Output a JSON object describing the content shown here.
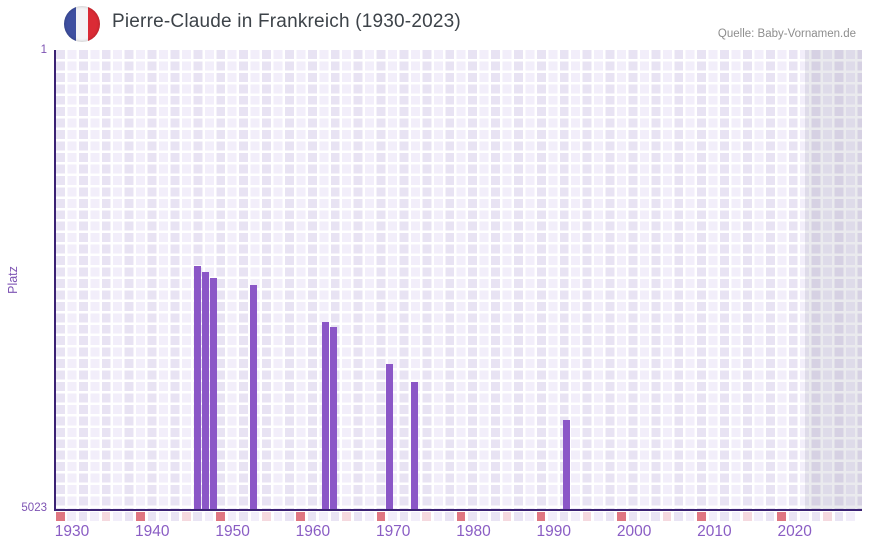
{
  "header": {
    "title": "Pierre-Claude in Frankreich (1930-2023)",
    "source": "Quelle: Baby-Vornamen.de",
    "flag_icon": "france-flag-icon"
  },
  "chart_data": {
    "type": "bar",
    "title": "Pierre-Claude in Frankreich (1930-2023)",
    "xlabel": "",
    "ylabel": "Platz",
    "x_ticks": [
      1930,
      1940,
      1950,
      1960,
      1970,
      1980,
      1990,
      2000,
      2010,
      2020
    ],
    "x_range_years": [
      1928,
      2026
    ],
    "y_axis": {
      "top_label": "1",
      "bottom_label": "5023",
      "min": 1,
      "max": 5023,
      "reversed": true
    },
    "legend": "none",
    "grid": "checkered-lavender",
    "series": [
      {
        "name": "Platz von Pierre-Claude",
        "points": [
          {
            "year": 1945,
            "rank": 2360
          },
          {
            "year": 1946,
            "rank": 2425
          },
          {
            "year": 1947,
            "rank": 2490
          },
          {
            "year": 1952,
            "rank": 2570
          },
          {
            "year": 1961,
            "rank": 2970
          },
          {
            "year": 1962,
            "rank": 3025
          },
          {
            "year": 1969,
            "rank": 3430
          },
          {
            "year": 1972,
            "rank": 3630
          },
          {
            "year": 1991,
            "rank": 4040
          }
        ]
      }
    ],
    "annotations": {
      "right_shaded_band_years": [
        2021,
        2023
      ]
    },
    "style": {
      "bar_color": "#8b57c7",
      "axis_line_color": "#3b2274",
      "x_tick_label_color": "#8a5dc4",
      "y_label_color": "#7d53b3",
      "title_color": "#3d4349",
      "source_color": "#8e8e8e",
      "grid_cell_dark": "#e8e3f3",
      "grid_cell_light": "#f2eefa",
      "strip_red": "#df7681",
      "strip_pink": "#f5d9df",
      "strip_lavender_dark": "#e9e4f4",
      "strip_lavender_light": "#f2eefa",
      "flag_blue": "#3e4fa0",
      "flag_red": "#da2b35"
    }
  }
}
